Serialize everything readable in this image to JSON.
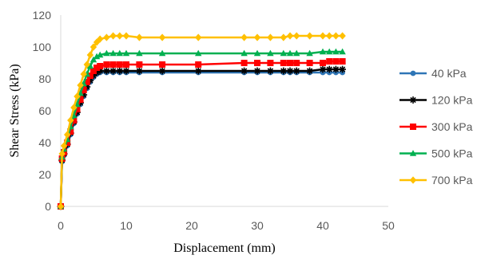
{
  "chart_data": {
    "type": "line",
    "title": "",
    "xlabel": "Displacement (mm)",
    "ylabel": "Shear Stress (kPa)",
    "xlim": [
      0,
      50
    ],
    "ylim": [
      0,
      120
    ],
    "xticks": [
      "0",
      "10",
      "20",
      "30",
      "40",
      "50"
    ],
    "yticks": [
      "0",
      "20",
      "40",
      "60",
      "80",
      "100",
      "120"
    ],
    "grid": false,
    "legend_position": "right",
    "series": [
      {
        "name": "40 kPa",
        "color": "#2E75B6",
        "marker": "circle",
        "points": [
          [
            0,
            0
          ],
          [
            0.2,
            28
          ],
          [
            0.5,
            32
          ],
          [
            1,
            38
          ],
          [
            1.5,
            45
          ],
          [
            2,
            52
          ],
          [
            2.5,
            58
          ],
          [
            3,
            64
          ],
          [
            3.5,
            69
          ],
          [
            4,
            74
          ],
          [
            4.5,
            78
          ],
          [
            5,
            81
          ],
          [
            5.5,
            83
          ],
          [
            6,
            84
          ],
          [
            7,
            84
          ],
          [
            8,
            84
          ],
          [
            9,
            84
          ],
          [
            10,
            84
          ],
          [
            12,
            84
          ],
          [
            15.5,
            84
          ],
          [
            21,
            84
          ],
          [
            28,
            84
          ],
          [
            30,
            84
          ],
          [
            32,
            84
          ],
          [
            34,
            84
          ],
          [
            35,
            84
          ],
          [
            36,
            84
          ],
          [
            38,
            84
          ],
          [
            40,
            84
          ],
          [
            41,
            84
          ],
          [
            42,
            84
          ],
          [
            43,
            84
          ]
        ]
      },
      {
        "name": "120 kPa",
        "color": "#000000",
        "marker": "star",
        "points": [
          [
            0,
            0
          ],
          [
            0.2,
            29
          ],
          [
            0.5,
            33
          ],
          [
            1,
            39
          ],
          [
            1.5,
            46
          ],
          [
            2,
            53
          ],
          [
            2.5,
            59
          ],
          [
            3,
            65
          ],
          [
            3.5,
            70
          ],
          [
            4,
            75
          ],
          [
            4.5,
            79
          ],
          [
            5,
            82
          ],
          [
            5.5,
            84
          ],
          [
            6,
            85
          ],
          [
            7,
            85
          ],
          [
            8,
            85
          ],
          [
            9,
            85
          ],
          [
            10,
            85
          ],
          [
            12,
            85
          ],
          [
            15.5,
            85
          ],
          [
            21,
            85
          ],
          [
            28,
            85
          ],
          [
            30,
            85
          ],
          [
            32,
            85
          ],
          [
            34,
            85
          ],
          [
            35,
            85
          ],
          [
            36,
            85
          ],
          [
            38,
            85
          ],
          [
            40,
            86
          ],
          [
            41,
            86
          ],
          [
            42,
            86
          ],
          [
            43,
            86
          ]
        ]
      },
      {
        "name": "300 kPa",
        "color": "#FF0000",
        "marker": "square",
        "points": [
          [
            0,
            0
          ],
          [
            0.2,
            30
          ],
          [
            0.5,
            34
          ],
          [
            1,
            40
          ],
          [
            1.5,
            47
          ],
          [
            2,
            54
          ],
          [
            2.5,
            61
          ],
          [
            3,
            67
          ],
          [
            3.5,
            73
          ],
          [
            4,
            78
          ],
          [
            4.5,
            82
          ],
          [
            5,
            85
          ],
          [
            5.5,
            87
          ],
          [
            6,
            88
          ],
          [
            7,
            89
          ],
          [
            8,
            89
          ],
          [
            9,
            89
          ],
          [
            10,
            89
          ],
          [
            12,
            89
          ],
          [
            15.5,
            89
          ],
          [
            21,
            89
          ],
          [
            28,
            90
          ],
          [
            30,
            90
          ],
          [
            32,
            90
          ],
          [
            34,
            90
          ],
          [
            35,
            90
          ],
          [
            36,
            90
          ],
          [
            38,
            90
          ],
          [
            40,
            90
          ],
          [
            41,
            91
          ],
          [
            42,
            91
          ],
          [
            43,
            91
          ]
        ]
      },
      {
        "name": "500 kPa",
        "color": "#00B050",
        "marker": "triangle",
        "points": [
          [
            0,
            0
          ],
          [
            0.2,
            31
          ],
          [
            0.5,
            36
          ],
          [
            1,
            42
          ],
          [
            1.5,
            50
          ],
          [
            2,
            57
          ],
          [
            2.5,
            64
          ],
          [
            3,
            71
          ],
          [
            3.5,
            77
          ],
          [
            4,
            83
          ],
          [
            4.5,
            88
          ],
          [
            5,
            92
          ],
          [
            5.5,
            94
          ],
          [
            6,
            95
          ],
          [
            7,
            96
          ],
          [
            8,
            96
          ],
          [
            9,
            96
          ],
          [
            10,
            96
          ],
          [
            12,
            96
          ],
          [
            15.5,
            96
          ],
          [
            21,
            96
          ],
          [
            28,
            96
          ],
          [
            30,
            96
          ],
          [
            32,
            96
          ],
          [
            34,
            96
          ],
          [
            35,
            96
          ],
          [
            36,
            96
          ],
          [
            38,
            96
          ],
          [
            40,
            97
          ],
          [
            41,
            97
          ],
          [
            42,
            97
          ],
          [
            43,
            97
          ]
        ]
      },
      {
        "name": "700 kPa",
        "color": "#FFC000",
        "marker": "diamond",
        "points": [
          [
            0,
            0
          ],
          [
            0.2,
            33
          ],
          [
            0.5,
            38
          ],
          [
            1,
            45
          ],
          [
            1.5,
            54
          ],
          [
            2,
            62
          ],
          [
            2.5,
            69
          ],
          [
            3,
            76
          ],
          [
            3.5,
            83
          ],
          [
            4,
            89
          ],
          [
            4.5,
            95
          ],
          [
            5,
            100
          ],
          [
            5.5,
            103
          ],
          [
            6,
            105
          ],
          [
            7,
            106
          ],
          [
            8,
            107
          ],
          [
            9,
            107
          ],
          [
            10,
            107
          ],
          [
            12,
            106
          ],
          [
            15.5,
            106
          ],
          [
            21,
            106
          ],
          [
            28,
            106
          ],
          [
            30,
            106
          ],
          [
            32,
            106
          ],
          [
            34,
            106
          ],
          [
            35,
            107
          ],
          [
            36,
            107
          ],
          [
            38,
            107
          ],
          [
            40,
            107
          ],
          [
            41,
            107
          ],
          [
            42,
            107
          ],
          [
            43,
            107
          ]
        ]
      }
    ]
  }
}
